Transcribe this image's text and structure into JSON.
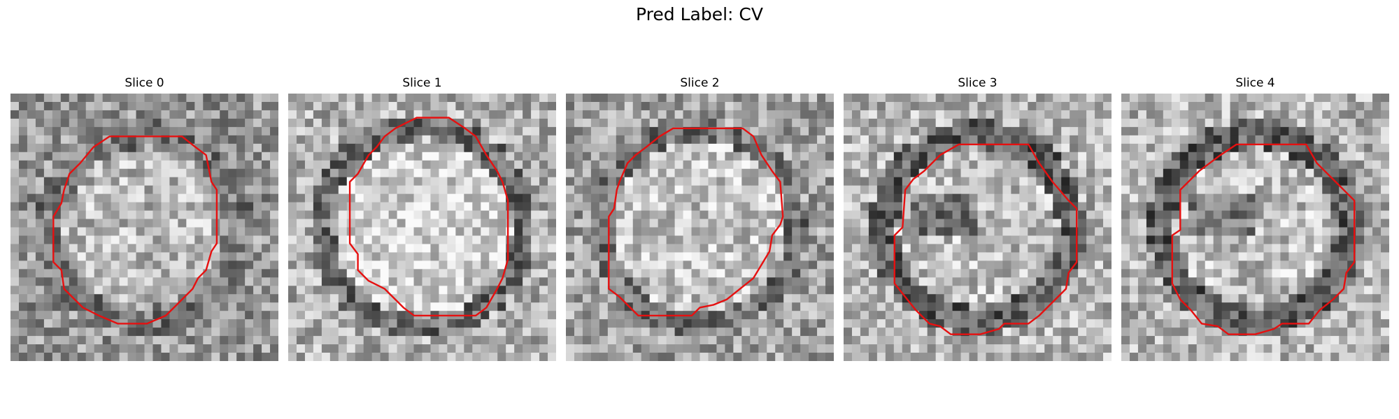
{
  "figure": {
    "title": "Pred Label: CV",
    "contour_color": "#e61010"
  },
  "panels": [
    {
      "title": "Slice 0",
      "seed": 11,
      "pattern": "noisy-ring",
      "contour": [
        [
          0.5,
          0.16
        ],
        [
          0.64,
          0.16
        ],
        [
          0.69,
          0.2
        ],
        [
          0.73,
          0.23
        ],
        [
          0.75,
          0.33
        ],
        [
          0.77,
          0.36
        ],
        [
          0.77,
          0.56
        ],
        [
          0.75,
          0.59
        ],
        [
          0.73,
          0.66
        ],
        [
          0.7,
          0.69
        ],
        [
          0.68,
          0.73
        ],
        [
          0.62,
          0.79
        ],
        [
          0.58,
          0.83
        ],
        [
          0.51,
          0.86
        ],
        [
          0.4,
          0.86
        ],
        [
          0.33,
          0.83
        ],
        [
          0.27,
          0.8
        ],
        [
          0.23,
          0.76
        ],
        [
          0.2,
          0.73
        ],
        [
          0.19,
          0.66
        ],
        [
          0.16,
          0.63
        ],
        [
          0.16,
          0.46
        ],
        [
          0.19,
          0.41
        ],
        [
          0.2,
          0.36
        ],
        [
          0.22,
          0.3
        ],
        [
          0.26,
          0.26
        ],
        [
          0.31,
          0.2
        ],
        [
          0.37,
          0.16
        ]
      ]
    },
    {
      "title": "Slice 1",
      "seed": 23,
      "pattern": "bright-disk",
      "contour": [
        [
          0.48,
          0.09
        ],
        [
          0.6,
          0.09
        ],
        [
          0.66,
          0.13
        ],
        [
          0.7,
          0.16
        ],
        [
          0.74,
          0.23
        ],
        [
          0.78,
          0.29
        ],
        [
          0.8,
          0.33
        ],
        [
          0.82,
          0.4
        ],
        [
          0.82,
          0.62
        ],
        [
          0.8,
          0.69
        ],
        [
          0.78,
          0.73
        ],
        [
          0.74,
          0.8
        ],
        [
          0.7,
          0.83
        ],
        [
          0.63,
          0.83
        ],
        [
          0.55,
          0.83
        ],
        [
          0.47,
          0.83
        ],
        [
          0.43,
          0.8
        ],
        [
          0.36,
          0.73
        ],
        [
          0.3,
          0.7
        ],
        [
          0.26,
          0.66
        ],
        [
          0.26,
          0.6
        ],
        [
          0.23,
          0.56
        ],
        [
          0.23,
          0.33
        ],
        [
          0.26,
          0.3
        ],
        [
          0.3,
          0.23
        ],
        [
          0.33,
          0.2
        ],
        [
          0.36,
          0.16
        ],
        [
          0.4,
          0.13
        ],
        [
          0.44,
          0.11
        ]
      ]
    },
    {
      "title": "Slice 2",
      "seed": 37,
      "pattern": "grainy",
      "contour": [
        [
          0.4,
          0.13
        ],
        [
          0.66,
          0.13
        ],
        [
          0.7,
          0.16
        ],
        [
          0.73,
          0.23
        ],
        [
          0.77,
          0.29
        ],
        [
          0.8,
          0.33
        ],
        [
          0.81,
          0.46
        ],
        [
          0.8,
          0.49
        ],
        [
          0.77,
          0.53
        ],
        [
          0.76,
          0.59
        ],
        [
          0.73,
          0.64
        ],
        [
          0.7,
          0.69
        ],
        [
          0.65,
          0.73
        ],
        [
          0.6,
          0.77
        ],
        [
          0.55,
          0.79
        ],
        [
          0.5,
          0.8
        ],
        [
          0.47,
          0.83
        ],
        [
          0.43,
          0.83
        ],
        [
          0.27,
          0.83
        ],
        [
          0.2,
          0.76
        ],
        [
          0.16,
          0.73
        ],
        [
          0.16,
          0.46
        ],
        [
          0.18,
          0.43
        ],
        [
          0.19,
          0.36
        ],
        [
          0.2,
          0.33
        ],
        [
          0.23,
          0.26
        ],
        [
          0.26,
          0.23
        ],
        [
          0.3,
          0.2
        ],
        [
          0.35,
          0.16
        ]
      ]
    },
    {
      "title": "Slice 3",
      "seed": 53,
      "pattern": "dark-ring",
      "contour": [
        [
          0.43,
          0.19
        ],
        [
          0.69,
          0.19
        ],
        [
          0.73,
          0.26
        ],
        [
          0.78,
          0.33
        ],
        [
          0.84,
          0.4
        ],
        [
          0.87,
          0.43
        ],
        [
          0.87,
          0.63
        ],
        [
          0.84,
          0.67
        ],
        [
          0.83,
          0.73
        ],
        [
          0.79,
          0.77
        ],
        [
          0.73,
          0.83
        ],
        [
          0.69,
          0.86
        ],
        [
          0.6,
          0.86
        ],
        [
          0.58,
          0.88
        ],
        [
          0.51,
          0.9
        ],
        [
          0.4,
          0.9
        ],
        [
          0.36,
          0.87
        ],
        [
          0.32,
          0.86
        ],
        [
          0.27,
          0.81
        ],
        [
          0.23,
          0.76
        ],
        [
          0.19,
          0.71
        ],
        [
          0.19,
          0.53
        ],
        [
          0.22,
          0.5
        ],
        [
          0.23,
          0.36
        ],
        [
          0.26,
          0.32
        ],
        [
          0.3,
          0.29
        ],
        [
          0.33,
          0.26
        ],
        [
          0.36,
          0.23
        ]
      ]
    },
    {
      "title": "Slice 4",
      "seed": 71,
      "pattern": "dark-ring",
      "contour": [
        [
          0.43,
          0.19
        ],
        [
          0.69,
          0.19
        ],
        [
          0.73,
          0.26
        ],
        [
          0.8,
          0.33
        ],
        [
          0.87,
          0.4
        ],
        [
          0.87,
          0.63
        ],
        [
          0.84,
          0.67
        ],
        [
          0.83,
          0.73
        ],
        [
          0.79,
          0.77
        ],
        [
          0.74,
          0.81
        ],
        [
          0.7,
          0.86
        ],
        [
          0.6,
          0.86
        ],
        [
          0.57,
          0.88
        ],
        [
          0.5,
          0.9
        ],
        [
          0.4,
          0.9
        ],
        [
          0.36,
          0.87
        ],
        [
          0.3,
          0.86
        ],
        [
          0.26,
          0.81
        ],
        [
          0.22,
          0.77
        ],
        [
          0.19,
          0.71
        ],
        [
          0.19,
          0.53
        ],
        [
          0.22,
          0.51
        ],
        [
          0.22,
          0.36
        ],
        [
          0.26,
          0.32
        ],
        [
          0.29,
          0.29
        ],
        [
          0.33,
          0.26
        ],
        [
          0.37,
          0.23
        ]
      ]
    }
  ]
}
